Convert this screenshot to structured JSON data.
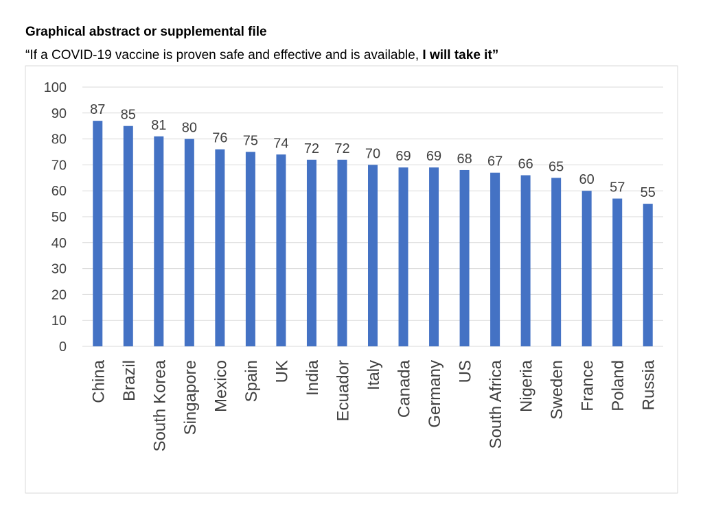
{
  "header": {
    "title": "Graphical abstract or supplemental file",
    "subtitle_pre": "“If a COVID-19 vaccine is proven safe and effective and is available, ",
    "subtitle_bold": "I will take it”"
  },
  "colors": {
    "bar": "#4472C4",
    "grid": "#d9d9d9",
    "frame": "#d9d9d9",
    "text": "#404040"
  },
  "chart_data": {
    "type": "bar",
    "title": "",
    "xlabel": "",
    "ylabel": "",
    "ylim": [
      0,
      100
    ],
    "yticks": [
      0,
      10,
      20,
      30,
      40,
      50,
      60,
      70,
      80,
      90,
      100
    ],
    "grid": true,
    "legend": "none",
    "data_labels": true,
    "categories": [
      "China",
      "Brazil",
      "South Korea",
      "Singapore",
      "Mexico",
      "Spain",
      "UK",
      "India",
      "Ecuador",
      "Italy",
      "Canada",
      "Germany",
      "US",
      "South Africa",
      "Nigeria",
      "Sweden",
      "France",
      "Poland",
      "Russia"
    ],
    "values": [
      87,
      85,
      81,
      80,
      76,
      75,
      74,
      72,
      72,
      70,
      69,
      69,
      68,
      67,
      66,
      65,
      60,
      57,
      55
    ]
  }
}
